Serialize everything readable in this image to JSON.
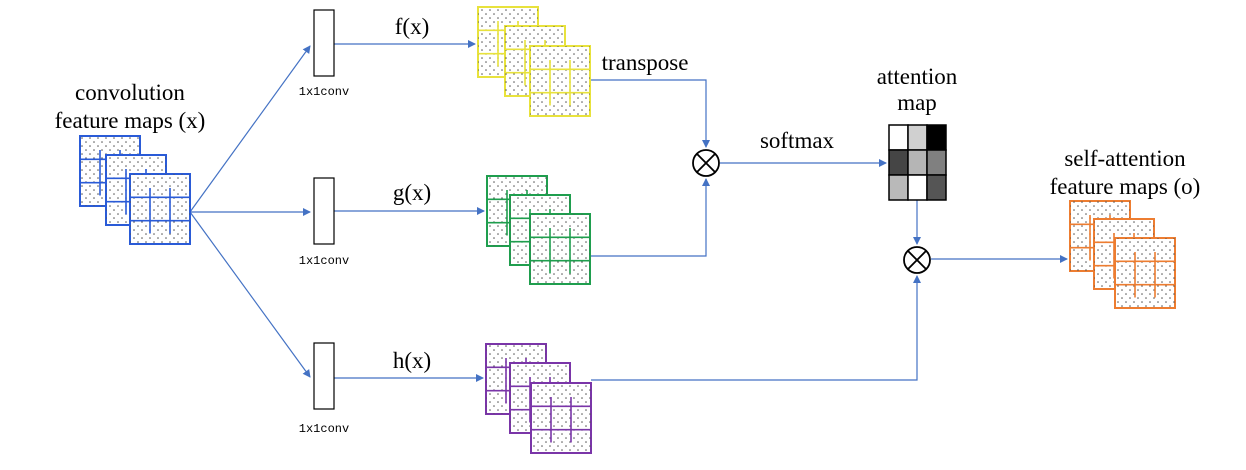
{
  "labels": {
    "input": [
      "convolution",
      "feature maps (x)"
    ],
    "f": "f(x)",
    "g": "g(x)",
    "h": "h(x)",
    "conv": "1x1conv",
    "transpose": "transpose",
    "softmax": "softmax",
    "attention": [
      "attention",
      "map"
    ],
    "output": [
      "self-attention",
      "feature maps (o)"
    ]
  },
  "colors": {
    "input": "#2a5bd7",
    "f": "#e8e23c",
    "g": "#1f9e4e",
    "h": "#7a35a8",
    "output": "#ed7d31",
    "arrow": "#4472c4"
  },
  "attention_map_gray": [
    [
      "#ffffff",
      "#d0d0d0",
      "#000000"
    ],
    [
      "#454545",
      "#b5b5b5",
      "#808080"
    ],
    [
      "#b9b9b9",
      "#ffffff",
      "#555555"
    ]
  ]
}
